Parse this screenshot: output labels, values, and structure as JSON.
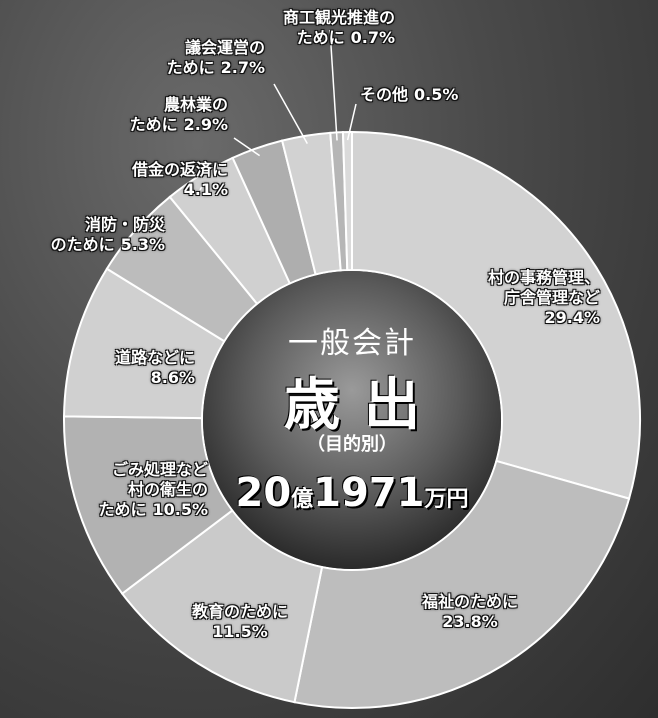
{
  "chart_data": {
    "type": "pie",
    "center": {
      "heading": "一般会計",
      "title": "歳出",
      "subtitle": "（目的別）",
      "total": [
        "20",
        "億",
        "1971",
        "万円"
      ]
    },
    "categories": [
      "村の事務管理、\n庁舎管理など",
      "福祉のために",
      "教育のために",
      "ごみ処理など\n村の衛生の\nために",
      "道路などに",
      "消防・防災\nのために",
      "借金の返済に",
      "農林業の\nために",
      "議会運営の\nために",
      "商工観光推進の\nために",
      "その他"
    ],
    "values": [
      29.4,
      23.8,
      11.5,
      10.5,
      8.6,
      5.3,
      4.1,
      2.9,
      2.7,
      0.7,
      0.5
    ],
    "value_labels": [
      "29.4%",
      "23.8%",
      "11.5%",
      "10.5%",
      "8.6%",
      "5.3%",
      "4.1%",
      "2.9%",
      "2.7%",
      "0.7%",
      "0.5%"
    ],
    "colors": [
      "#d2d2d2",
      "#bdbdbd",
      "#cacaca",
      "#b2b2b2",
      "#d0d0d0",
      "#bcbcbc",
      "#d0d0d0",
      "#aeaeae",
      "#d2d2d2",
      "#b6b6b6",
      "#dadada"
    ]
  }
}
